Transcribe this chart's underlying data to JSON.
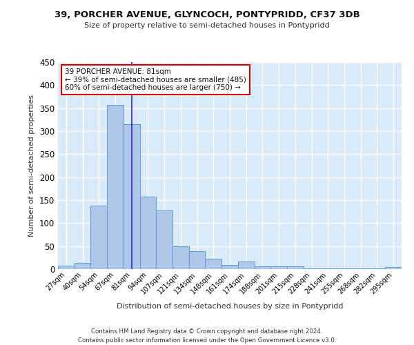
{
  "title": "39, PORCHER AVENUE, GLYNCOCH, PONTYPRIDD, CF37 3DB",
  "subtitle": "Size of property relative to semi-detached houses in Pontypridd",
  "xlabel": "Distribution of semi-detached houses by size in Pontypridd",
  "ylabel": "Number of semi-detached properties",
  "bar_color": "#aec6e8",
  "bar_edge_color": "#5a9fd4",
  "background_color": "#daeaf8",
  "grid_color": "#ffffff",
  "categories": [
    "27sqm",
    "40sqm",
    "54sqm",
    "67sqm",
    "81sqm",
    "94sqm",
    "107sqm",
    "121sqm",
    "134sqm",
    "148sqm",
    "161sqm",
    "174sqm",
    "188sqm",
    "201sqm",
    "215sqm",
    "228sqm",
    "241sqm",
    "255sqm",
    "268sqm",
    "282sqm",
    "295sqm"
  ],
  "values": [
    7,
    13,
    138,
    357,
    315,
    158,
    127,
    50,
    39,
    22,
    9,
    16,
    6,
    6,
    6,
    1,
    1,
    1,
    1,
    1,
    4
  ],
  "ylim": [
    0,
    450
  ],
  "yticks": [
    0,
    50,
    100,
    150,
    200,
    250,
    300,
    350,
    400,
    450
  ],
  "property_size_label": "81sqm",
  "vline_color": "#2222cc",
  "annotation_text": "39 PORCHER AVENUE: 81sqm\n← 39% of semi-detached houses are smaller (485)\n60% of semi-detached houses are larger (750) →",
  "annotation_box_edge": "#cc0000",
  "footer": "Contains HM Land Registry data © Crown copyright and database right 2024.\nContains public sector information licensed under the Open Government Licence v3.0."
}
